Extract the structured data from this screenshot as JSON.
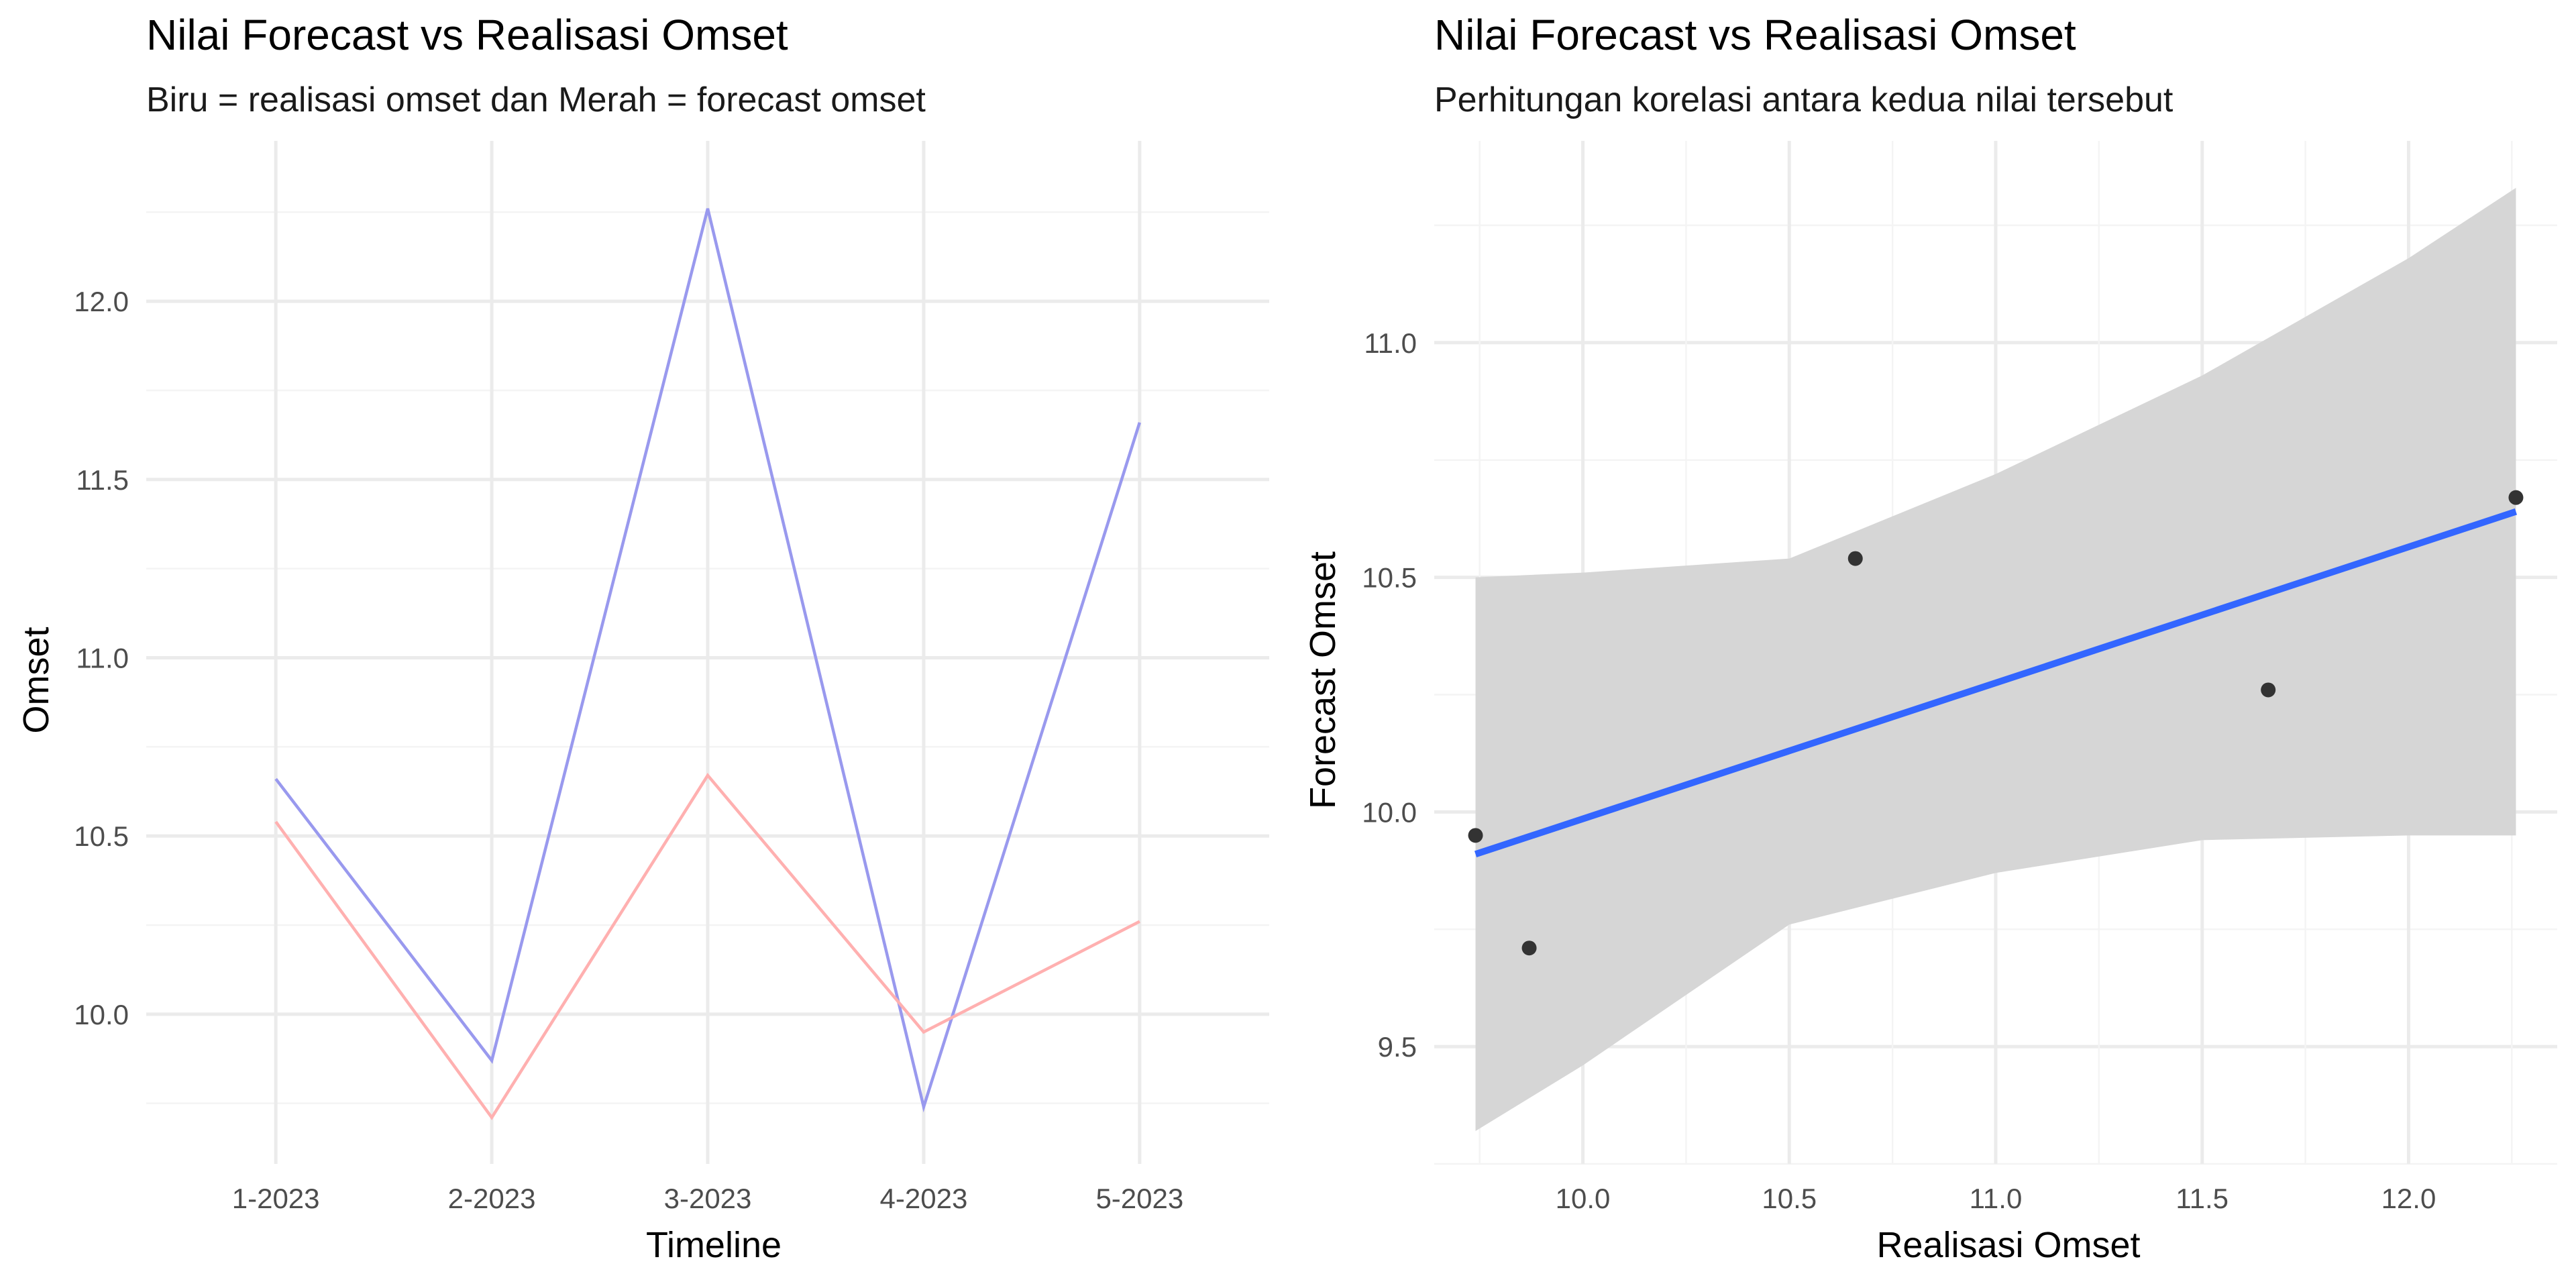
{
  "chart_data": [
    {
      "type": "line",
      "title": "Nilai Forecast vs Realisasi Omset",
      "subtitle": "Biru = realisasi omset dan Merah = forecast omset",
      "xlabel": "Timeline",
      "ylabel": "Omset",
      "categories": [
        "1-2023",
        "2-2023",
        "3-2023",
        "4-2023",
        "5-2023"
      ],
      "yticks": [
        "10.0",
        "10.5",
        "11.0",
        "11.5",
        "12.0"
      ],
      "ylim": [
        9.58,
        12.45
      ],
      "grid": true,
      "series": [
        {
          "name": "Realisasi",
          "color": "#9999ee",
          "values": [
            10.66,
            9.87,
            12.26,
            9.74,
            11.66
          ]
        },
        {
          "name": "Forecast",
          "color": "#ffb0b0",
          "values": [
            10.54,
            9.71,
            10.67,
            9.95,
            10.26
          ]
        }
      ]
    },
    {
      "type": "scatter",
      "title": "Nilai Forecast vs Realisasi Omset",
      "subtitle": "Perhitungan korelasi antara kedua nilai tersebut",
      "xlabel": "Realisasi Omset",
      "ylabel": "Forecast Omset",
      "xticks": [
        "10.0",
        "10.5",
        "11.0",
        "11.5",
        "12.0"
      ],
      "yticks": [
        "9.5",
        "10.0",
        "10.5",
        "11.0"
      ],
      "xlim": [
        9.64,
        12.36
      ],
      "ylim": [
        9.25,
        11.43
      ],
      "grid": true,
      "point_color": "#333333",
      "fit_color": "#3366ff",
      "band_color": "#d6d6d6",
      "points": [
        {
          "x": 9.74,
          "y": 9.95
        },
        {
          "x": 9.87,
          "y": 9.71
        },
        {
          "x": 10.66,
          "y": 10.54
        },
        {
          "x": 11.66,
          "y": 10.26
        },
        {
          "x": 12.26,
          "y": 10.67
        }
      ],
      "fit": {
        "x": [
          9.74,
          12.26
        ],
        "y": [
          9.91,
          10.64
        ]
      },
      "band": {
        "x": [
          9.74,
          10.0,
          10.5,
          11.0,
          11.5,
          12.0,
          12.26
        ],
        "upper": [
          10.5,
          10.51,
          10.54,
          10.72,
          10.93,
          11.18,
          11.33
        ],
        "lower": [
          9.32,
          9.46,
          9.76,
          9.87,
          9.94,
          9.95,
          9.95
        ]
      }
    }
  ]
}
